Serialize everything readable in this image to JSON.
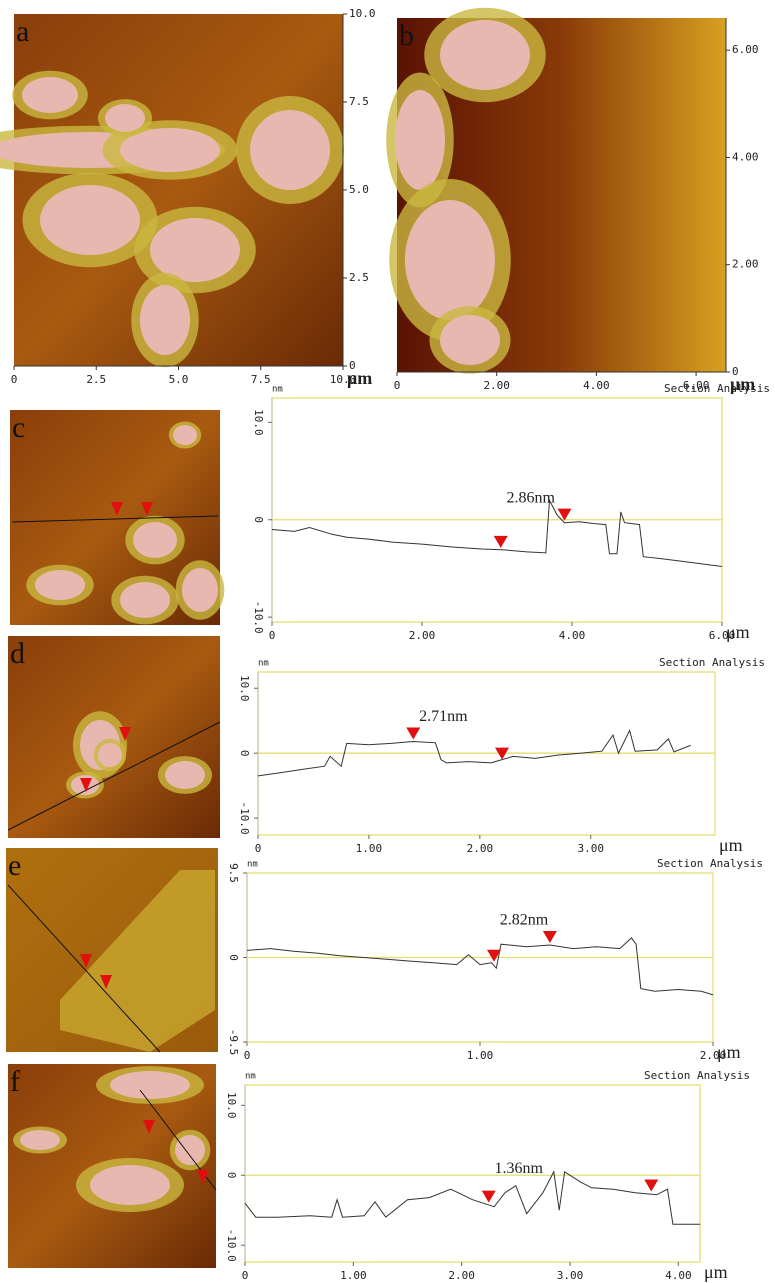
{
  "chart_data": [
    {
      "type": "image",
      "label": "a",
      "x_label": "μm",
      "xlim": [
        0,
        10
      ],
      "ylim": [
        0,
        10
      ],
      "xticks": [
        0,
        2.5,
        {
          "value": 5,
          "label": "5.0"
        },
        7.5,
        {
          "value": 10,
          "label": "10.0"
        }
      ],
      "yticks": [
        0,
        2.5,
        {
          "value": 5,
          "label": "5.0"
        },
        7.5,
        {
          "value": 10,
          "label": "10.0"
        }
      ]
    },
    {
      "type": "image",
      "label": "b",
      "x_label": "μm",
      "xlim": [
        0,
        6.6
      ],
      "ylim": [
        0,
        6.6
      ],
      "xticks": [
        0,
        {
          "value": 2,
          "label": "2.00"
        },
        {
          "value": 4,
          "label": "4.00"
        },
        {
          "value": 6,
          "label": "6.00"
        }
      ],
      "yticks": [
        0,
        {
          "value": 2,
          "label": "2.00"
        },
        {
          "value": 4,
          "label": "4.00"
        },
        {
          "value": 6,
          "label": "6.00"
        }
      ]
    },
    {
      "type": "line",
      "label": "c",
      "title": "Section Analysis",
      "y_unit": "nm",
      "x_label": "μm",
      "annotation": "2.86nm",
      "xlim": [
        0,
        6
      ],
      "ylim": [
        -10.5,
        12.5
      ],
      "xticks": [
        0,
        {
          "value": 2,
          "label": "2.00"
        },
        {
          "value": 4,
          "label": "4.00"
        },
        {
          "value": 6,
          "label": "6.00"
        }
      ],
      "yticks": [
        {
          "value": 10,
          "label": "10.0"
        },
        0,
        {
          "value": -10,
          "label": "-10.0"
        }
      ],
      "x": [
        0,
        0.3,
        0.5,
        0.8,
        1.0,
        1.3,
        1.6,
        2.0,
        2.4,
        2.8,
        3.1,
        3.4,
        3.65,
        3.7,
        3.8,
        3.9,
        4.1,
        4.3,
        4.45,
        4.5,
        4.6,
        4.65,
        4.7,
        4.9,
        4.95,
        5.2,
        5.5,
        6.0
      ],
      "values": [
        -1,
        -1.2,
        -0.8,
        -1.5,
        -1.8,
        -2,
        -2.3,
        -2.5,
        -2.8,
        -3,
        -3.1,
        -3.3,
        -3.4,
        2,
        0.5,
        -0.3,
        -0.2,
        -0.4,
        -0.5,
        -3.5,
        -3.5,
        0.8,
        -0.3,
        -0.5,
        -3.8,
        -4,
        -4.3,
        -4.8
      ],
      "cursors": [
        {
          "x": 3.05,
          "y": -3.1
        },
        {
          "x": 3.9,
          "y": -0.3
        }
      ]
    },
    {
      "type": "line",
      "label": "d",
      "title": "Section Analysis",
      "y_unit": "nm",
      "x_label": "μm",
      "annotation": "2.71nm",
      "xlim": [
        0,
        4.12
      ],
      "ylim": [
        -12.6,
        12.5
      ],
      "xticks": [
        0,
        {
          "value": 1,
          "label": "1.00"
        },
        {
          "value": 2,
          "label": "2.00"
        },
        {
          "value": 3,
          "label": "3.00"
        }
      ],
      "yticks": [
        {
          "value": 10,
          "label": "10.0"
        },
        0,
        {
          "value": -10,
          "label": "-10.0"
        }
      ],
      "x": [
        0,
        0.2,
        0.4,
        0.6,
        0.65,
        0.75,
        0.8,
        1.0,
        1.2,
        1.4,
        1.6,
        1.65,
        1.7,
        1.9,
        2.1,
        2.3,
        2.5,
        2.7,
        2.9,
        3.1,
        3.2,
        3.25,
        3.35,
        3.4,
        3.6,
        3.7,
        3.75,
        3.9
      ],
      "values": [
        -3.5,
        -3,
        -2.5,
        -2,
        -0.5,
        -2,
        1.5,
        1.3,
        1.5,
        1.8,
        1.6,
        -1,
        -1.5,
        -1.3,
        -1.5,
        -0.5,
        -0.8,
        -0.3,
        0,
        0.3,
        2.8,
        0,
        3.5,
        0.3,
        0.5,
        2.2,
        0.2,
        1.2
      ],
      "cursors": [
        {
          "x": 1.4,
          "y": 1.8
        },
        {
          "x": 2.2,
          "y": -1.3
        }
      ]
    },
    {
      "type": "line",
      "label": "e",
      "title": "Section Analysis",
      "y_unit": "nm",
      "x_label": "μm",
      "annotation": "2.82nm",
      "xlim": [
        0,
        2
      ],
      "ylim": [
        -9.5,
        9.5
      ],
      "xticks": [
        0,
        {
          "value": 1,
          "label": "1.00"
        },
        {
          "value": 2,
          "label": "2.00"
        }
      ],
      "yticks": [
        9.5,
        0,
        -9.5
      ],
      "x": [
        0,
        0.1,
        0.2,
        0.3,
        0.4,
        0.5,
        0.6,
        0.7,
        0.8,
        0.9,
        0.95,
        1.0,
        1.05,
        1.07,
        1.09,
        1.2,
        1.3,
        1.4,
        1.5,
        1.6,
        1.65,
        1.67,
        1.69,
        1.75,
        1.85,
        1.95,
        2.0
      ],
      "values": [
        0.8,
        1,
        0.7,
        0.5,
        0.2,
        0,
        -0.2,
        -0.4,
        -0.6,
        -0.8,
        0.3,
        -0.8,
        -0.6,
        -1.2,
        1.5,
        1.2,
        1.4,
        1.0,
        1.2,
        1.0,
        2.2,
        1.5,
        -3.5,
        -3.8,
        -3.6,
        -3.8,
        -4.2
      ],
      "cursors": [
        {
          "x": 1.06,
          "y": -0.7
        },
        {
          "x": 1.3,
          "y": 1.4
        }
      ]
    },
    {
      "type": "line",
      "label": "f",
      "title": "Section Analysis",
      "y_unit": "nm",
      "x_label": "μm",
      "annotation": "1.36nm",
      "xlim": [
        0,
        4.2
      ],
      "ylim": [
        -12.4,
        12.9
      ],
      "xticks": [
        0,
        {
          "value": 1,
          "label": "1.00"
        },
        {
          "value": 2,
          "label": "2.00"
        },
        {
          "value": 3,
          "label": "3.00"
        },
        {
          "value": 4,
          "label": "4.00"
        }
      ],
      "yticks": [
        {
          "value": 10,
          "label": "10.0"
        },
        0,
        {
          "value": -10,
          "label": "-10.0"
        }
      ],
      "x": [
        0,
        0.1,
        0.3,
        0.6,
        0.8,
        0.85,
        0.9,
        1.1,
        1.2,
        1.3,
        1.5,
        1.7,
        1.9,
        2.1,
        2.3,
        2.4,
        2.5,
        2.6,
        2.75,
        2.85,
        2.9,
        2.95,
        3.1,
        3.2,
        3.4,
        3.6,
        3.8,
        3.9,
        3.95,
        4.2
      ],
      "values": [
        -4,
        -6,
        -6,
        -5.8,
        -6,
        -3.5,
        -6,
        -5.8,
        -3.8,
        -6,
        -3.5,
        -3.2,
        -2,
        -3.5,
        -4.5,
        -2.5,
        -1.5,
        -5.5,
        -2.5,
        0.5,
        -5,
        0.5,
        -1,
        -1.8,
        -2,
        -2.5,
        -2.8,
        -2,
        -7,
        -7
      ],
      "cursors": [
        {
          "x": 2.25,
          "y": -4.2
        },
        {
          "x": 3.75,
          "y": -2.6
        }
      ]
    }
  ]
}
